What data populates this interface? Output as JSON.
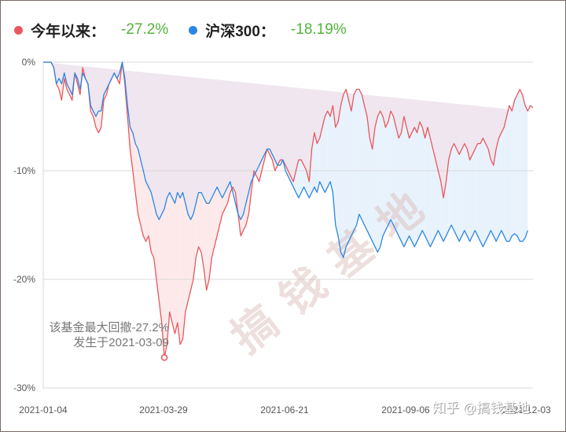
{
  "legend": [
    {
      "name": "今年以来：",
      "value": "-27.2%",
      "color": "#e8585e"
    },
    {
      "name": "沪深300：",
      "value": "-18.19%",
      "color": "#2b86e3"
    }
  ],
  "annotation": {
    "line1": "该基金最大回撤-27.2%",
    "line2": "发生于2021-03-09"
  },
  "watermark": "搞钱基地",
  "zhihu_watermark": "知乎 @搞钱基地",
  "chart_data": {
    "type": "line",
    "x_ticks": [
      "2021-01-04",
      "2021-03-29",
      "2021-06-21",
      "2021-09-06",
      "2021-12-03"
    ],
    "y_ticks": [
      "0%",
      "-10%",
      "-20%",
      "-30%"
    ],
    "ylim": [
      -30,
      0
    ],
    "grid": true,
    "legend_position": "top-left",
    "max_drawdown": {
      "value": -27.2,
      "date": "2021-03-09"
    },
    "series": [
      {
        "name": "今年以来",
        "color": "#e8585e",
        "values": [
          0,
          0,
          0,
          0,
          -0.5,
          -2,
          -2.5,
          -3.5,
          -1.5,
          -2.5,
          -3,
          -3.5,
          -1,
          -2,
          -3,
          -0.5,
          -1.5,
          -2,
          -4.5,
          -5,
          -6,
          -6.5,
          -6,
          -3.5,
          -3,
          -2,
          -1.5,
          -1,
          -1.5,
          -2,
          0,
          -2,
          -5,
          -8,
          -10,
          -12,
          -14,
          -15,
          -16,
          -16.5,
          -16,
          -17.5,
          -18,
          -20,
          -22,
          -24,
          -27.2,
          -26,
          -23,
          -24,
          -25,
          -24,
          -26,
          -25.5,
          -23,
          -22,
          -21,
          -20,
          -18,
          -17,
          -17.5,
          -19,
          -21,
          -20,
          -18,
          -17,
          -16,
          -15,
          -14,
          -13.5,
          -13,
          -12,
          -11.5,
          -12,
          -14,
          -16,
          -15.5,
          -15,
          -14,
          -12,
          -10,
          -10.5,
          -11,
          -10,
          -9,
          -8,
          -8.5,
          -9,
          -10,
          -9.5,
          -9,
          -9,
          -9.5,
          -10,
          -10.5,
          -11,
          -10,
          -9,
          -9,
          -9.5,
          -10,
          -11,
          -8,
          -6.5,
          -7.5,
          -7,
          -6,
          -5,
          -4.5,
          -5,
          -4,
          -6,
          -5.5,
          -4,
          -3,
          -2.5,
          -3.5,
          -4.5,
          -3,
          -2.5,
          -2.5,
          -3,
          -4,
          -5,
          -7,
          -8,
          -6,
          -5,
          -4.5,
          -5,
          -6,
          -5.5,
          -4.5,
          -5,
          -6,
          -7,
          -6.5,
          -5,
          -6,
          -7,
          -6.5,
          -6,
          -6.5,
          -5.5,
          -6,
          -7,
          -6,
          -7,
          -8,
          -9,
          -10,
          -11,
          -12.5,
          -11,
          -9,
          -8,
          -7.5,
          -8,
          -8.5,
          -8,
          -7.5,
          -8,
          -9,
          -8.5,
          -8,
          -7.5,
          -7.5,
          -7,
          -7.5,
          -8,
          -9,
          -9.5,
          -8,
          -7,
          -6.5,
          -6,
          -5,
          -4,
          -4.5,
          -3.5,
          -3,
          -2.5,
          -3,
          -4,
          -4.5,
          -4,
          -4.2
        ]
      },
      {
        "name": "沪深300",
        "color": "#2b86e3",
        "values": [
          0,
          0,
          0,
          0,
          -0.5,
          -2,
          -1.5,
          -2,
          -1,
          -2,
          -2.5,
          -3,
          -1,
          -1.5,
          -2.5,
          -1,
          -1.5,
          -2,
          -4,
          -4.5,
          -5,
          -4.5,
          -4.5,
          -3,
          -2.5,
          -2,
          -1.5,
          -1,
          -1.5,
          -1,
          0,
          -1.5,
          -4,
          -6,
          -6.5,
          -7.5,
          -8,
          -9,
          -10,
          -11,
          -11.5,
          -12,
          -13,
          -14,
          -14.5,
          -14,
          -13.5,
          -12.5,
          -12,
          -12.5,
          -13,
          -12,
          -12.5,
          -12,
          -13,
          -14,
          -14.5,
          -14,
          -13,
          -12,
          -12,
          -12.5,
          -13,
          -13,
          -12.5,
          -12,
          -11.5,
          -12,
          -12.5,
          -12,
          -11.5,
          -11,
          -12,
          -13,
          -14,
          -14.5,
          -14,
          -13,
          -12,
          -11,
          -10.5,
          -10,
          -9.5,
          -9,
          -8.5,
          -8,
          -8,
          -8.5,
          -9,
          -9.5,
          -9.5,
          -9,
          -10,
          -10.5,
          -11,
          -11.5,
          -12,
          -12.5,
          -12,
          -11.5,
          -12,
          -12.5,
          -12,
          -11.5,
          -12,
          -11,
          -11.5,
          -12,
          -11.5,
          -11,
          -12,
          -15,
          -16,
          -17.5,
          -18,
          -17,
          -16.5,
          -16,
          -15.5,
          -15,
          -14,
          -14.5,
          -15,
          -15.5,
          -16,
          -16.5,
          -17,
          -17.5,
          -17,
          -16,
          -15.5,
          -15,
          -14.5,
          -15,
          -15.5,
          -16,
          -16.5,
          -17,
          -16.5,
          -16,
          -16.5,
          -17,
          -16.5,
          -16,
          -15.5,
          -16,
          -16.5,
          -17,
          -16.5,
          -16,
          -15.5,
          -16,
          -16.5,
          -16,
          -15.5,
          -15,
          -15.5,
          -16,
          -16.5,
          -16,
          -15.5,
          -16,
          -16.5,
          -16,
          -15.5,
          -16,
          -16.5,
          -17,
          -16.5,
          -16,
          -15.5,
          -16,
          -16.5,
          -16,
          -15.5,
          -16,
          -16.5,
          -16.5,
          -16,
          -15.8,
          -16,
          -16.5,
          -16.5,
          -16.2,
          -15.5
        ]
      }
    ]
  }
}
